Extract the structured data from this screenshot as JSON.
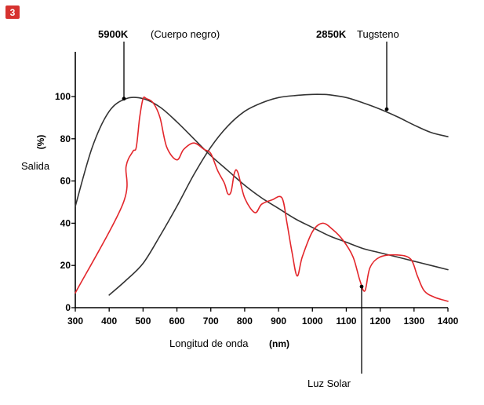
{
  "badge": {
    "label": "3",
    "color": "#d6322f"
  },
  "chart_data": {
    "type": "line",
    "title": "",
    "xlabel": "Longitud de onda",
    "xunit": "(nm)",
    "ylabel": "Salida",
    "yunit": "(%)",
    "xlim": [
      300,
      1400
    ],
    "ylim": [
      0,
      120
    ],
    "xticks": [
      300,
      400,
      500,
      600,
      700,
      800,
      900,
      1000,
      1100,
      1200,
      1300,
      1400
    ],
    "yticks": [
      0,
      20,
      40,
      60,
      80,
      100
    ],
    "grid": false,
    "legend": "none",
    "series": [
      {
        "name": "5900K (Cuerpo negro)",
        "color": "#333333",
        "x": [
          300,
          350,
          400,
          450,
          500,
          550,
          600,
          650,
          700,
          750,
          800,
          850,
          900,
          950,
          1000,
          1050,
          1100,
          1150,
          1200,
          1250,
          1300,
          1350,
          1400
        ],
        "y": [
          48,
          76,
          93,
          99,
          99,
          95,
          88,
          80,
          72,
          65,
          58,
          52,
          47,
          42,
          38,
          34,
          31,
          28,
          26,
          24,
          22,
          20,
          18
        ]
      },
      {
        "name": "2850K Tugsteno",
        "color": "#333333",
        "x": [
          400,
          450,
          500,
          550,
          600,
          650,
          700,
          750,
          800,
          850,
          900,
          950,
          1000,
          1030,
          1050,
          1100,
          1150,
          1200,
          1250,
          1300,
          1350,
          1400
        ],
        "y": [
          6,
          13,
          21,
          34,
          48,
          63,
          76,
          86,
          93,
          97,
          99.5,
          100.5,
          101,
          101,
          100.8,
          99.5,
          97,
          94,
          90.5,
          86.5,
          83,
          81
        ]
      },
      {
        "name": "Luz Solar",
        "color": "#e3262b",
        "x": [
          300,
          440,
          450,
          470,
          480,
          490,
          500,
          510,
          530,
          550,
          570,
          600,
          620,
          650,
          680,
          700,
          720,
          740,
          750,
          760,
          770,
          780,
          800,
          830,
          850,
          880,
          910,
          925,
          940,
          955,
          970,
          1000,
          1030,
          1060,
          1090,
          1120,
          1140,
          1155,
          1170,
          1200,
          1250,
          1290,
          1310,
          1330,
          1360,
          1400
        ],
        "y": [
          7,
          49,
          67,
          74,
          76,
          90,
          99,
          99,
          97,
          90,
          76,
          70,
          75,
          78,
          75,
          73,
          65,
          59,
          54,
          55,
          64,
          64,
          52,
          45,
          49,
          51,
          52,
          40,
          26,
          15,
          24,
          36,
          40,
          37,
          32,
          24,
          13,
          8,
          19,
          24,
          25,
          23,
          15,
          8,
          5,
          3
        ]
      }
    ],
    "annotations": [
      {
        "text_bold": "5900K",
        "text_rest": "(Cuerpo negro)",
        "series": "5900K (Cuerpo negro)",
        "at_x": 450,
        "at_y": 99
      },
      {
        "text_bold": "2850K",
        "text_rest": "Tugsteno",
        "series": "2850K Tugsteno",
        "at_x": 1220,
        "at_y": 94
      },
      {
        "text_bold": "",
        "text_rest": "Luz Solar",
        "series": "Luz Solar",
        "at_x": 1152,
        "at_y": 10
      }
    ]
  }
}
